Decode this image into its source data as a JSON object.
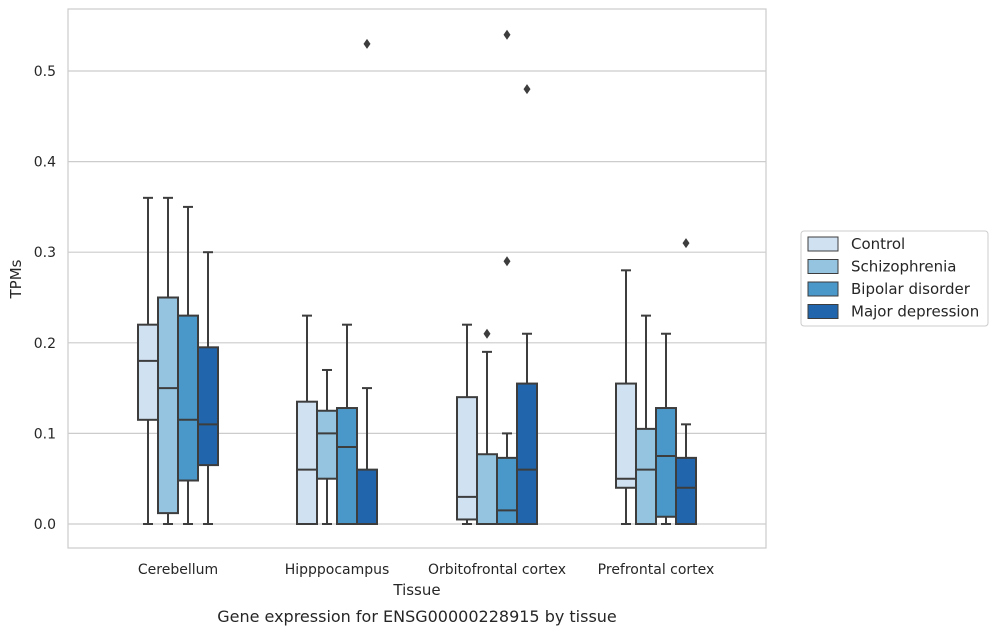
{
  "chart_data": {
    "type": "box",
    "xlabel": "Tissue",
    "ylabel": "TPMs",
    "caption": "Gene expression for ENSG00000228915 by tissue",
    "ylim": [
      -0.026,
      0.571
    ],
    "yticks": [
      0.0,
      0.1,
      0.2,
      0.3,
      0.4,
      0.5
    ],
    "ytick_labels": [
      "0.0",
      "0.1",
      "0.2",
      "0.3",
      "0.4",
      "0.5"
    ],
    "grid": "horizontal",
    "legend_position": "right",
    "categories": [
      "Cerebellum",
      "Hipppocampus",
      "Orbitofrontal cortex",
      "Prefrontal cortex"
    ],
    "series": [
      {
        "name": "Control",
        "color": "#d0e1f2",
        "boxes": [
          {
            "min": 0.0,
            "q1": 0.115,
            "median": 0.18,
            "q3": 0.22,
            "max": 0.36,
            "outliers": []
          },
          {
            "min": 0.0,
            "q1": 0.0,
            "median": 0.06,
            "q3": 0.135,
            "max": 0.23,
            "outliers": []
          },
          {
            "min": 0.0,
            "q1": 0.005,
            "median": 0.03,
            "q3": 0.14,
            "max": 0.22,
            "outliers": []
          },
          {
            "min": 0.0,
            "q1": 0.04,
            "median": 0.05,
            "q3": 0.155,
            "max": 0.28,
            "outliers": []
          }
        ]
      },
      {
        "name": "Schizophrenia",
        "color": "#94c4df",
        "boxes": [
          {
            "min": 0.0,
            "q1": 0.012,
            "median": 0.15,
            "q3": 0.25,
            "max": 0.36,
            "outliers": []
          },
          {
            "min": 0.0,
            "q1": 0.05,
            "median": 0.1,
            "q3": 0.125,
            "max": 0.17,
            "outliers": []
          },
          {
            "min": 0.0,
            "q1": 0.0,
            "median": 0.0,
            "q3": 0.077,
            "max": 0.19,
            "outliers": [
              0.21
            ]
          },
          {
            "min": 0.0,
            "q1": 0.0,
            "median": 0.06,
            "q3": 0.105,
            "max": 0.23,
            "outliers": []
          }
        ]
      },
      {
        "name": "Bipolar disorder",
        "color": "#4a98c9",
        "boxes": [
          {
            "min": 0.0,
            "q1": 0.048,
            "median": 0.115,
            "q3": 0.23,
            "max": 0.35,
            "outliers": []
          },
          {
            "min": 0.0,
            "q1": 0.0,
            "median": 0.085,
            "q3": 0.128,
            "max": 0.22,
            "outliers": []
          },
          {
            "min": 0.0,
            "q1": 0.0,
            "median": 0.015,
            "q3": 0.073,
            "max": 0.1,
            "outliers": [
              0.29,
              0.54
            ]
          },
          {
            "min": 0.0,
            "q1": 0.008,
            "median": 0.075,
            "q3": 0.128,
            "max": 0.21,
            "outliers": []
          }
        ]
      },
      {
        "name": "Major depression",
        "color": "#2166ac",
        "boxes": [
          {
            "min": 0.0,
            "q1": 0.065,
            "median": 0.11,
            "q3": 0.195,
            "max": 0.3,
            "outliers": []
          },
          {
            "min": 0.0,
            "q1": 0.0,
            "median": 0.0,
            "q3": 0.06,
            "max": 0.15,
            "outliers": [
              0.53
            ]
          },
          {
            "min": 0.0,
            "q1": 0.0,
            "median": 0.06,
            "q3": 0.155,
            "max": 0.21,
            "outliers": [
              0.48
            ]
          },
          {
            "min": 0.0,
            "q1": 0.0,
            "median": 0.04,
            "q3": 0.073,
            "max": 0.11,
            "outliers": [
              0.31
            ]
          }
        ]
      }
    ]
  }
}
